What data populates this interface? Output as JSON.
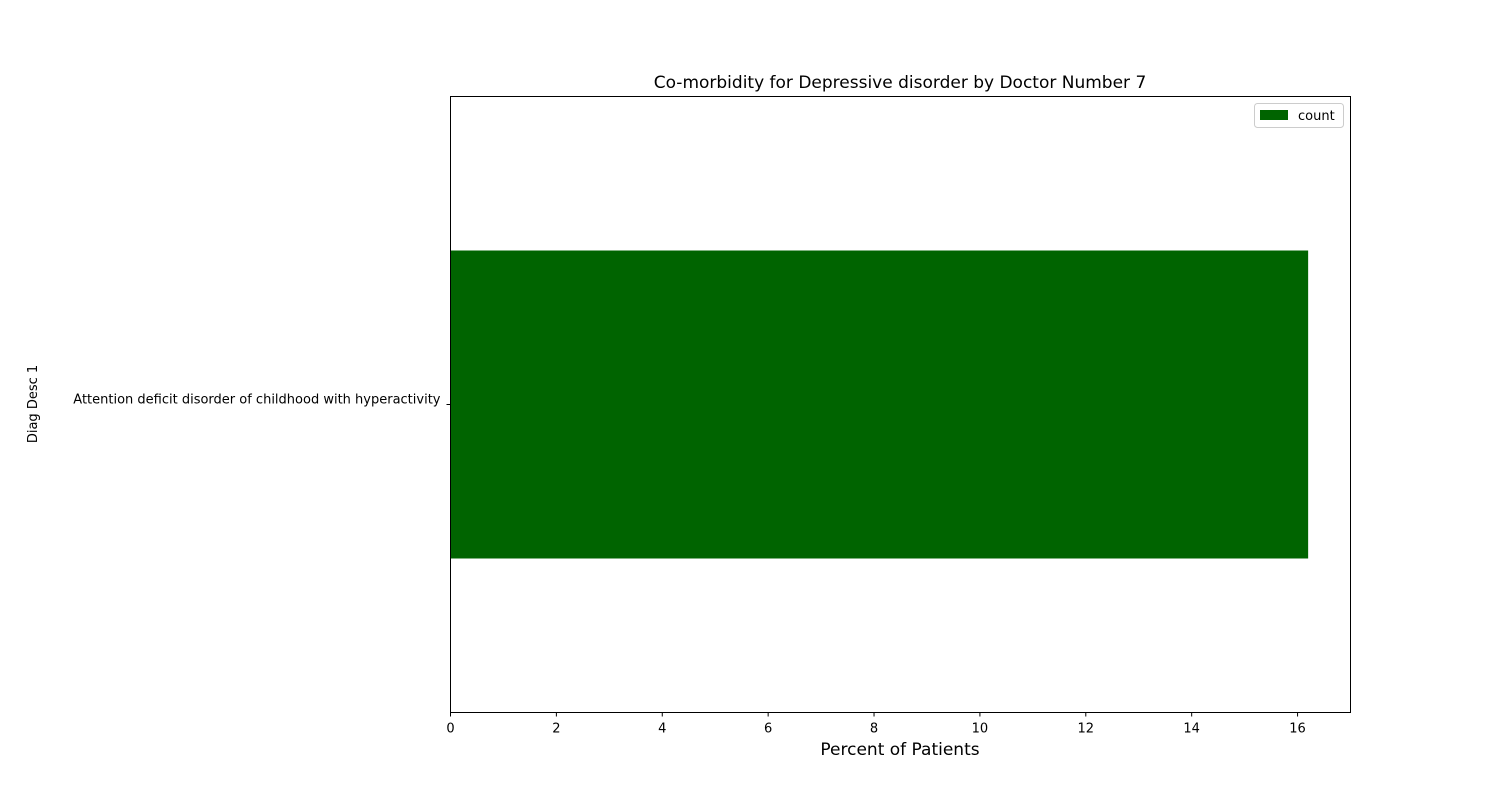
{
  "chart_data": {
    "type": "bar",
    "orientation": "horizontal",
    "title": "Co-morbidity for Depressive disorder by Doctor Number 7",
    "xlabel": "Percent of Patients",
    "ylabel": "Diag Desc 1",
    "categories": [
      "Attention deficit disorder of childhood with hyperactivity"
    ],
    "series": [
      {
        "name": "count",
        "values": [
          16.2
        ],
        "color": "#006400"
      }
    ],
    "xlim": [
      0,
      17
    ],
    "xticks": [
      0,
      2,
      4,
      6,
      8,
      10,
      12,
      14,
      16
    ],
    "grid": false,
    "legend_position": "top-right"
  }
}
